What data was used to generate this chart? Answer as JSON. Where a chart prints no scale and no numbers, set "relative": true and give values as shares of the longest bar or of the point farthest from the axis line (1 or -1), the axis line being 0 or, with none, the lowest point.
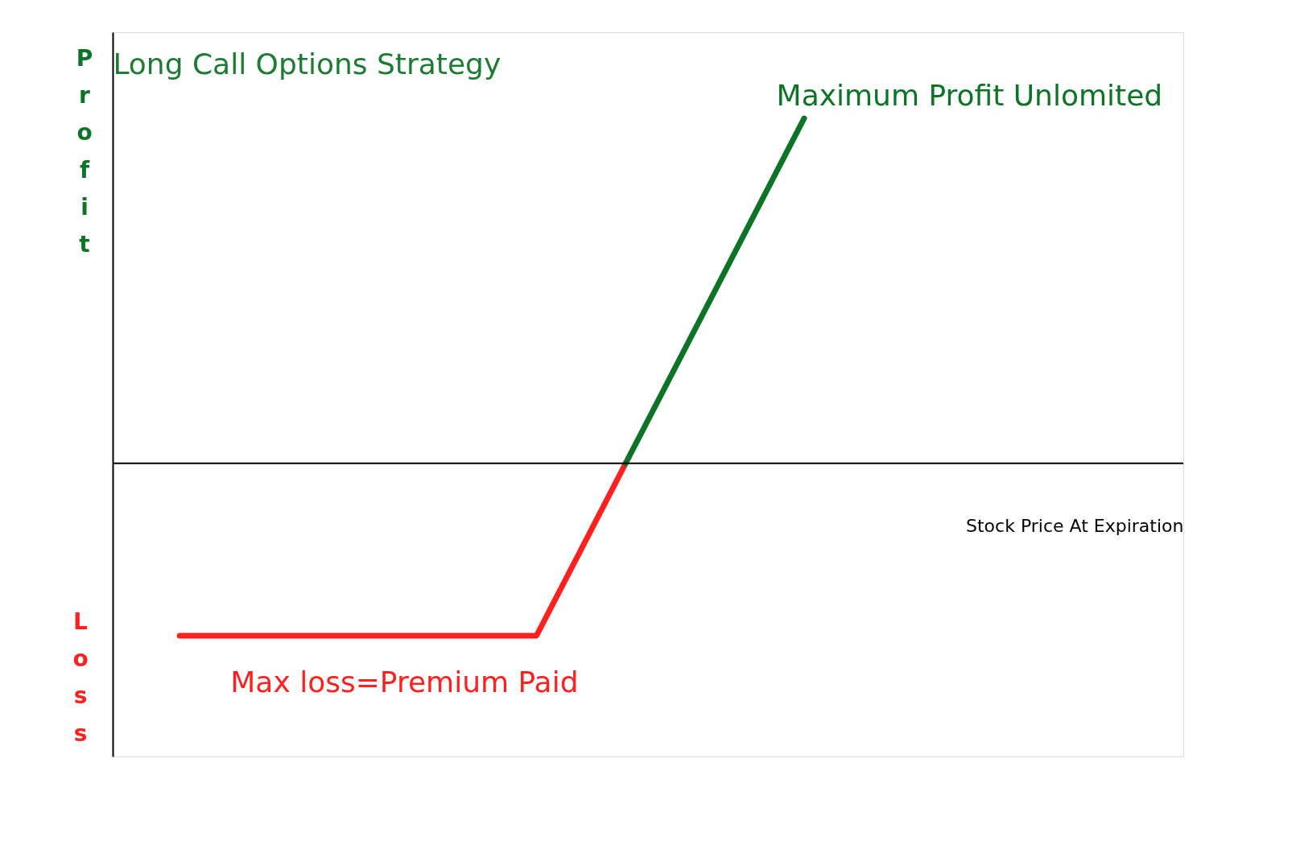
{
  "chart_data": {
    "type": "line",
    "title": "Long Call Options Strategy",
    "xlabel": "Stock Price At Expiration",
    "relative": true,
    "categories": [
      null,
      null,
      null,
      null,
      null,
      null,
      null,
      null,
      null,
      null,
      null,
      null,
      null,
      null,
      null,
      null,
      null,
      null,
      null,
      null,
      null,
      null,
      null,
      null
    ],
    "series": [
      {
        "color": "#ff2020",
        "values": [
          null,
          -0.5,
          null,
          null,
          null,
          null,
          null,
          null,
          null,
          -0.5,
          null,
          0,
          null,
          null,
          null,
          null,
          null,
          null,
          null,
          null,
          null,
          null,
          null,
          null
        ]
      },
      {
        "color": "#0d7427",
        "values": [
          null,
          null,
          null,
          null,
          null,
          null,
          null,
          null,
          null,
          null,
          null,
          0,
          null,
          null,
          null,
          1,
          null,
          null,
          null,
          null,
          null,
          null,
          null,
          null
        ]
      }
    ],
    "annotations": [
      "Maximum Profit Unlomited",
      "Max loss=Premium Paid",
      "Profit",
      "Loss"
    ],
    "grid": false,
    "legend": false
  }
}
